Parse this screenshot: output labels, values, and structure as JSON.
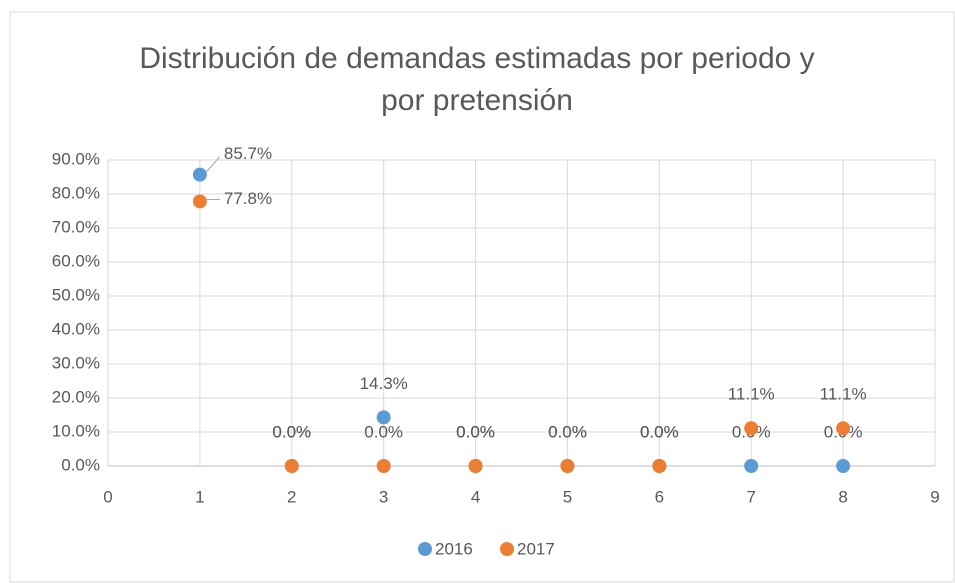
{
  "chart_data": {
    "type": "scatter",
    "title": "Distribución de demandas estimadas por periodo y por pretensión",
    "x": [
      1,
      2,
      3,
      4,
      5,
      6,
      7,
      8
    ],
    "series": [
      {
        "name": "2016",
        "color": "#5b9bd5",
        "values": [
          85.7,
          0,
          14.3,
          0,
          0,
          0,
          0,
          0
        ],
        "value_labels": [
          "85.7%",
          "0.0%",
          "14.3%",
          "0.0%",
          "0.0%",
          "0.0%",
          "0.0%",
          "0.0%"
        ]
      },
      {
        "name": "2017",
        "color": "#ed7d31",
        "values": [
          77.8,
          0,
          0,
          0,
          0,
          0,
          11.1,
          11.1
        ],
        "value_labels": [
          "77.8%",
          "0.0%",
          "0.0%",
          "0.0%",
          "0.0%",
          "0.0%",
          "11.1%",
          "11.1%"
        ]
      }
    ],
    "xlim": [
      0,
      9
    ],
    "xticks": [
      0,
      1,
      2,
      3,
      4,
      5,
      6,
      7,
      8,
      9
    ],
    "ylim": [
      0,
      90
    ],
    "yticks": [
      {
        "value": 0,
        "label": "0.0%"
      },
      {
        "value": 10,
        "label": "10.0%"
      },
      {
        "value": 20,
        "label": "20.0%"
      },
      {
        "value": 30,
        "label": "30.0%"
      },
      {
        "value": 40,
        "label": "40.0%"
      },
      {
        "value": 50,
        "label": "50.0%"
      },
      {
        "value": 60,
        "label": "60.0%"
      },
      {
        "value": 70,
        "label": "70.0%"
      },
      {
        "value": 80,
        "label": "80.0%"
      },
      {
        "value": 90,
        "label": "90.0%"
      }
    ],
    "grid": true,
    "legend": "bottom"
  }
}
